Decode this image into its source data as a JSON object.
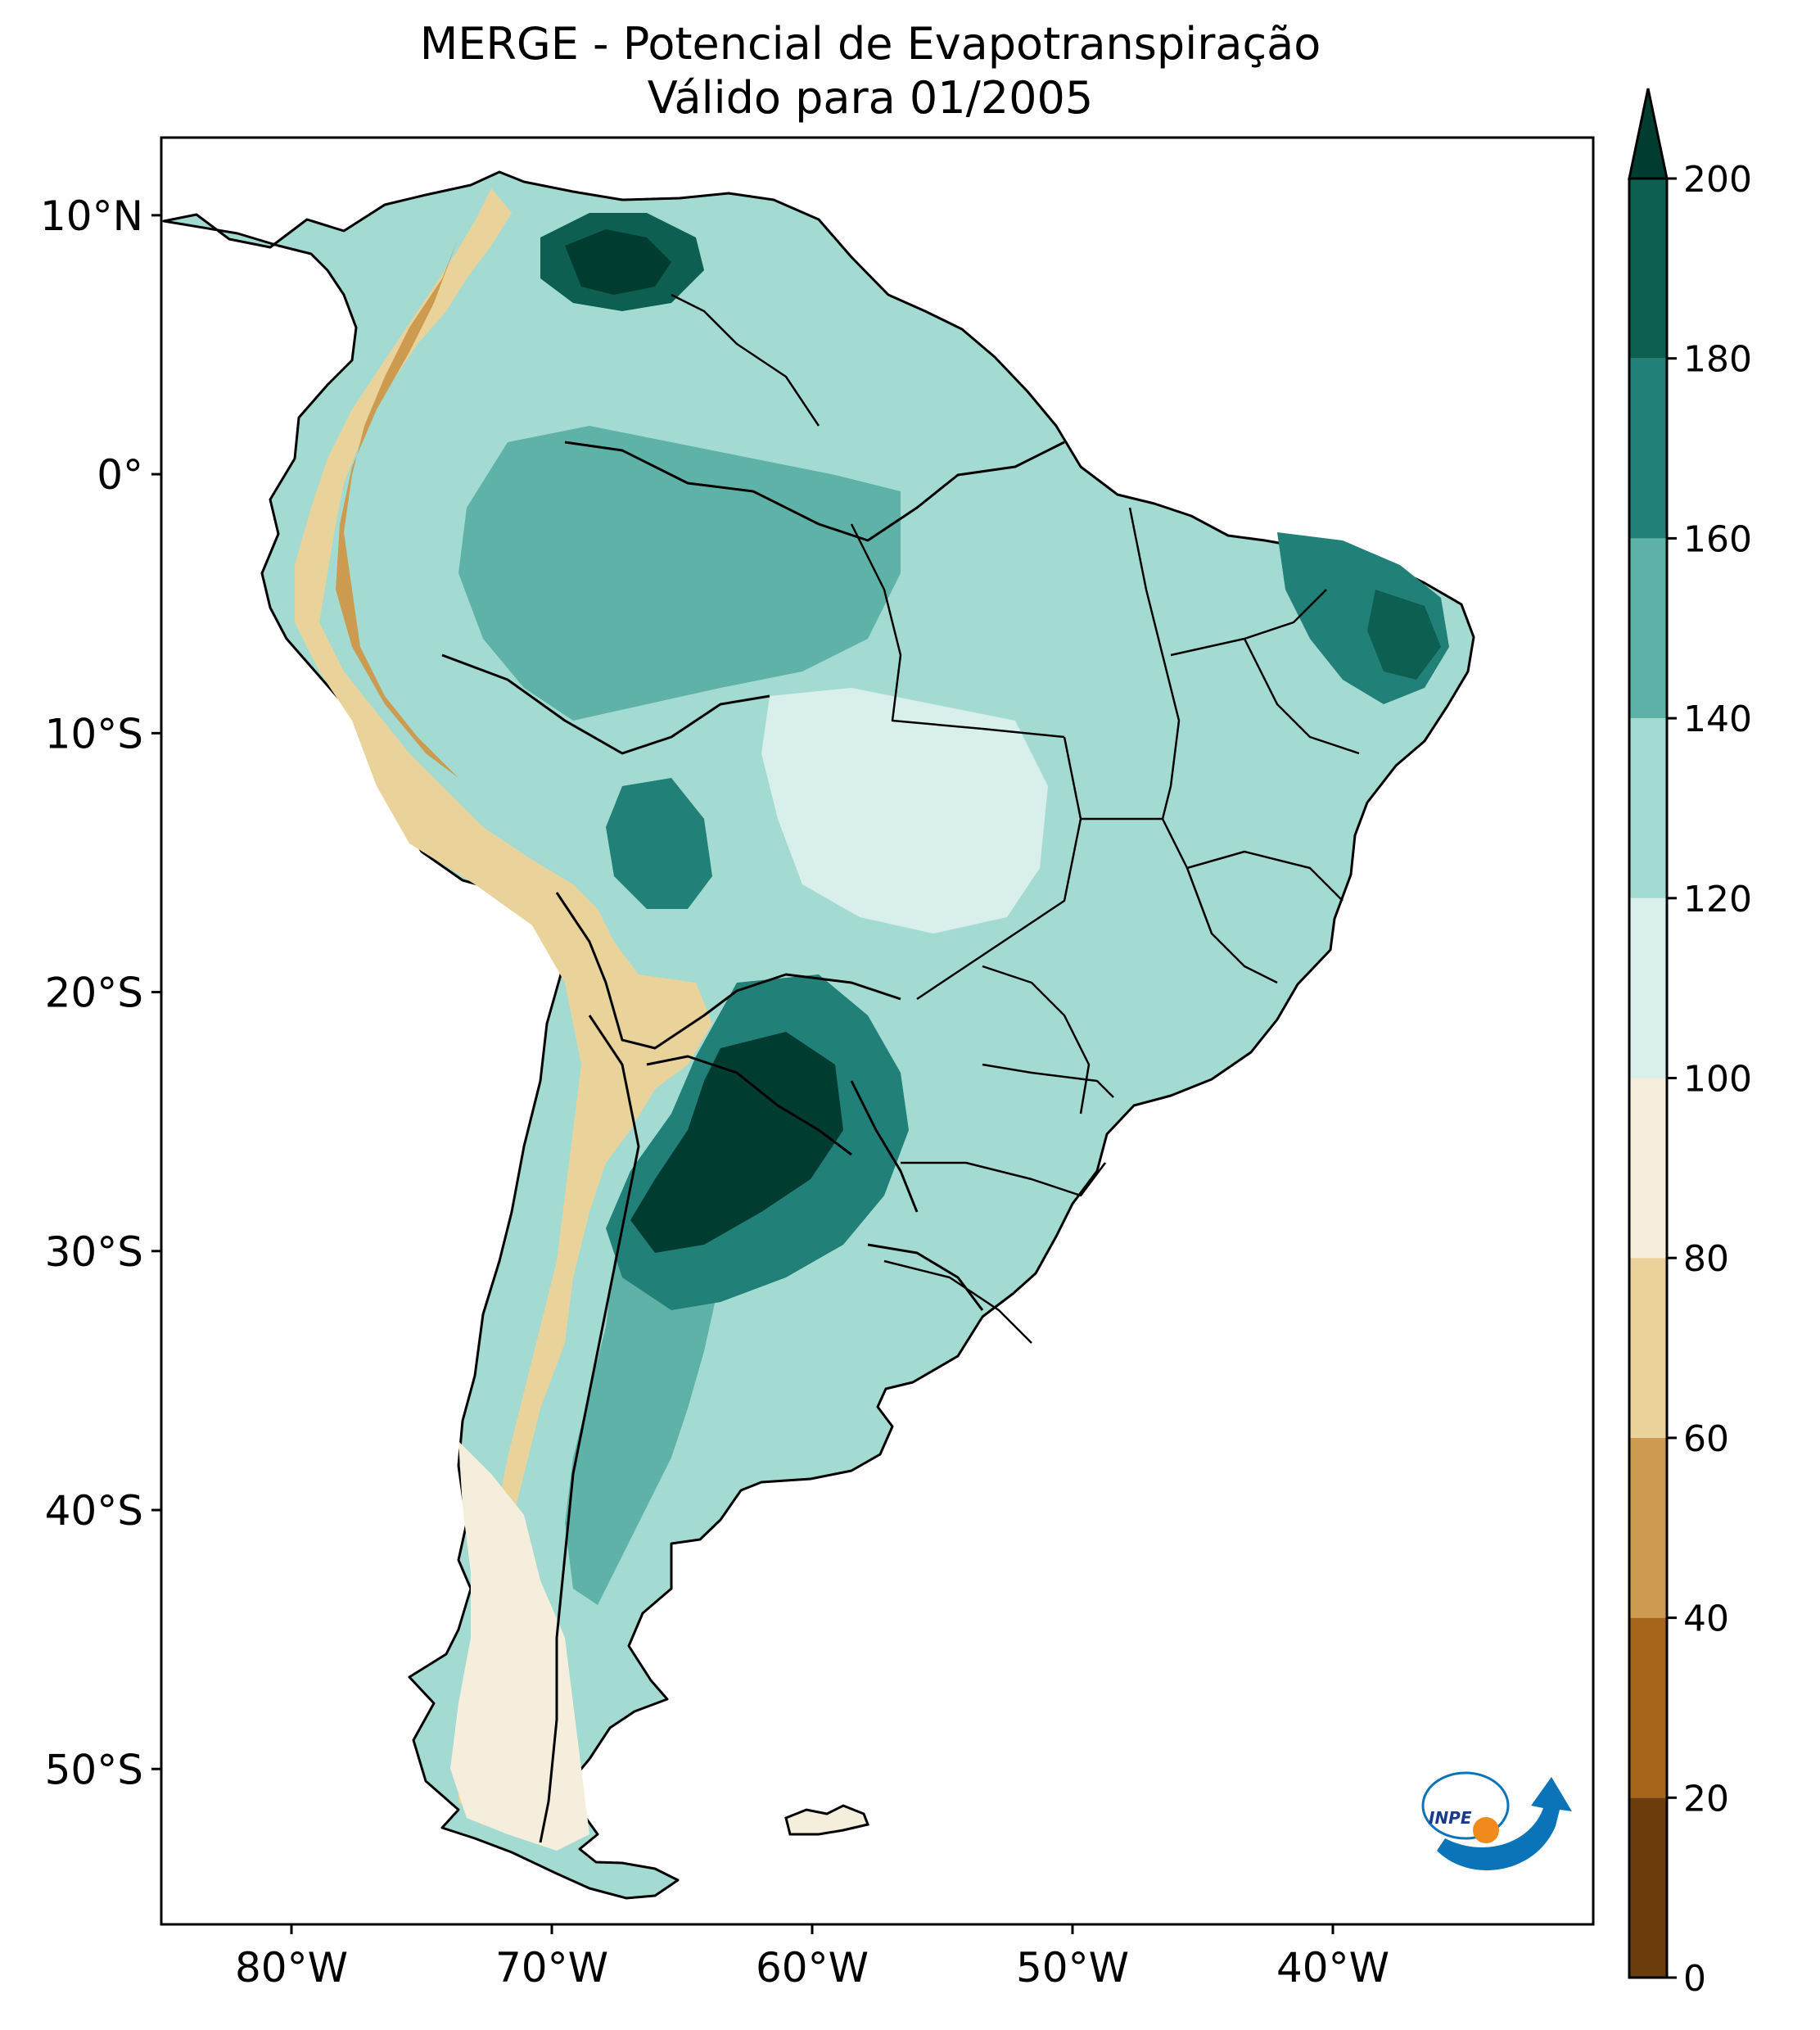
{
  "title": {
    "line1": "MERGE - Potencial de Evapotranspiração",
    "line2": "Válido para 01/2005"
  },
  "chart_data": {
    "type": "filled-contour map",
    "variable": "Potencial de Evapotranspiração",
    "region": "South America",
    "valid_period": "01/2005",
    "lon_range": [
      -85,
      -30
    ],
    "lat_range": [
      -56,
      13
    ],
    "x_ticks": [
      {
        "value": -80,
        "label": "80°W"
      },
      {
        "value": -70,
        "label": "70°W"
      },
      {
        "value": -60,
        "label": "60°W"
      },
      {
        "value": -50,
        "label": "50°W"
      },
      {
        "value": -40,
        "label": "40°W"
      }
    ],
    "y_ticks": [
      {
        "value": 10,
        "label": "10°N"
      },
      {
        "value": 0,
        "label": "0°"
      },
      {
        "value": -10,
        "label": "10°S"
      },
      {
        "value": -20,
        "label": "20°S"
      },
      {
        "value": -30,
        "label": "30°S"
      },
      {
        "value": -40,
        "label": "40°S"
      },
      {
        "value": -50,
        "label": "50°S"
      }
    ],
    "colorbar": {
      "levels": [
        0,
        20,
        40,
        60,
        80,
        100,
        120,
        140,
        160,
        180,
        200
      ],
      "labels": [
        "0",
        "20",
        "40",
        "60",
        "80",
        "100",
        "120",
        "140",
        "160",
        "180",
        "200"
      ],
      "colors": [
        "#6b3d0c",
        "#a5661c",
        "#cd9b4f",
        "#e9d39a",
        "#f5eedd",
        "#d9efec",
        "#a3dbd2",
        "#5fb2a7",
        "#218077",
        "#0d5f51",
        "#003d30"
      ],
      "extend": "max"
    },
    "logo": "INPE"
  }
}
